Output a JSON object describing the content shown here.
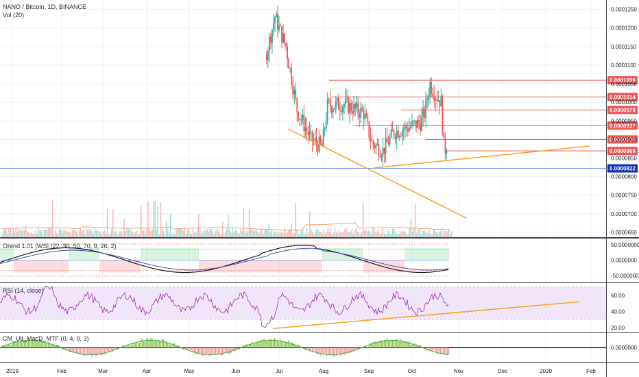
{
  "header": {
    "symbol": "NANO / Bitcoin, 1D, BINANCE",
    "volume_label": "Vol (20)"
  },
  "colors": {
    "up": "#26a69a",
    "down": "#ef5350",
    "trendline": "#f7a11b",
    "support_line": "#2962ff",
    "last_price_tag": "#0d2db5",
    "rsi_line": "#9c27b0"
  },
  "chart_data": [
    {
      "type": "candlestick",
      "title": "NANO / Bitcoin, 1D, BINANCE",
      "y_axis_ticks": [
        "0.0001250",
        "0.0001200",
        "0.0001150",
        "0.0001100",
        "0.0001050",
        "0.0001000",
        "0.0000950",
        "0.0000900",
        "0.0000850",
        "0.0000800",
        "0.0000750",
        "0.0000700",
        "0.0000650"
      ],
      "y_range": [
        6.37e-05,
        0.0001275
      ],
      "horizontal_levels": [
        "0.0001059",
        "0.0001014",
        "0.0000979",
        "0.0000937",
        "0.0000900",
        "0.0000869"
      ],
      "support_level": "0.0000822",
      "notes": "Price rallied to ~0.000128 in late June 2019, fell to ~0.0000870 by early August and ranged 0.0000870-0.0001060 into October; last close ~0.0000869."
    },
    {
      "type": "bar",
      "title": "Vol (20)",
      "notes": "Daily volume histogram in the lower portion of the price pane, with a 20-period moving average line."
    },
    {
      "type": "line",
      "title": "Orend 1.01 [WS] (22, 30, 50, 70, 9, 26, 2)",
      "y_axis_ticks": [
        "50.0000000",
        "0.0000000",
        "-50.0000000"
      ],
      "y_range": [
        -70,
        70
      ]
    },
    {
      "type": "line",
      "title": "RSI (14, close)",
      "y_axis_ticks": [
        "60.00",
        "40.00",
        "20.00"
      ],
      "y_range": [
        15,
        75
      ],
      "band": [
        30,
        70
      ]
    },
    {
      "type": "bar",
      "title": "CM_Ult_MacD_MTF (0, 4, 9, 3)",
      "y_axis_ticks": [
        "0.0000000"
      ],
      "y_range": [
        -1,
        1
      ]
    }
  ],
  "x_axis": {
    "labels": [
      "2019",
      "Feb",
      "Mar",
      "Apr",
      "May",
      "Jun",
      "Jul",
      "Aug",
      "Sep",
      "Oct",
      "Nov",
      "Dec",
      "2020",
      "Feb"
    ]
  }
}
